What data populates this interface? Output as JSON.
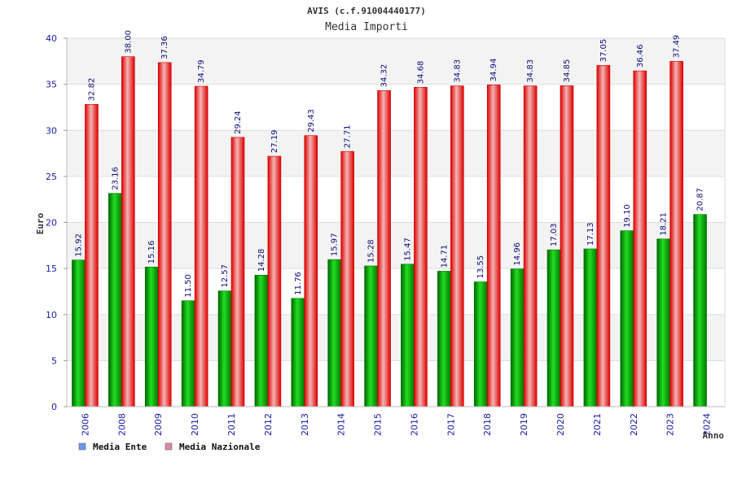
{
  "chart_data": {
    "type": "bar",
    "title": "AVIS (c.f.91004440177)",
    "subtitle": "Media Importi",
    "xlabel": "Anno",
    "ylabel": "Euro",
    "ylim": [
      0,
      40
    ],
    "yticks": [
      "0",
      "5",
      "10",
      "15",
      "20",
      "25",
      "30",
      "35",
      "40"
    ],
    "legend_position": "bottom-left",
    "categories": [
      "2006",
      "2008",
      "2009",
      "2010",
      "2011",
      "2012",
      "2013",
      "2014",
      "2015",
      "2016",
      "2017",
      "2018",
      "2019",
      "2020",
      "2021",
      "2022",
      "2023",
      "2024"
    ],
    "series": [
      {
        "name": "Media Ente",
        "color": "#00aa00",
        "legend_color": "#6699ee",
        "values": [
          15.92,
          23.16,
          15.16,
          11.5,
          12.57,
          14.28,
          11.76,
          15.97,
          15.28,
          15.47,
          14.71,
          13.55,
          14.96,
          17.03,
          17.13,
          19.1,
          18.21,
          20.87
        ],
        "labels": [
          "15.92",
          "23.16",
          "15.16",
          "11.50",
          "12.57",
          "14.28",
          "11.76",
          "15.97",
          "15.28",
          "15.47",
          "14.71",
          "13.55",
          "14.96",
          "17.03",
          "17.13",
          "19.10",
          "18.21",
          "20.87"
        ]
      },
      {
        "name": "Media Nazionale",
        "color": "#ee2222",
        "legend_color": "#dd88aa",
        "values": [
          32.82,
          38.0,
          37.36,
          34.79,
          29.24,
          27.19,
          29.43,
          27.71,
          34.32,
          34.68,
          34.83,
          34.94,
          34.83,
          34.85,
          37.05,
          36.46,
          37.49,
          null
        ],
        "labels": [
          "32.82",
          "38.00",
          "37.36",
          "34.79",
          "29.24",
          "27.19",
          "29.43",
          "27.71",
          "34.32",
          "34.68",
          "34.83",
          "34.94",
          "34.83",
          "34.85",
          "37.05",
          "36.46",
          "37.49",
          null
        ]
      }
    ]
  }
}
